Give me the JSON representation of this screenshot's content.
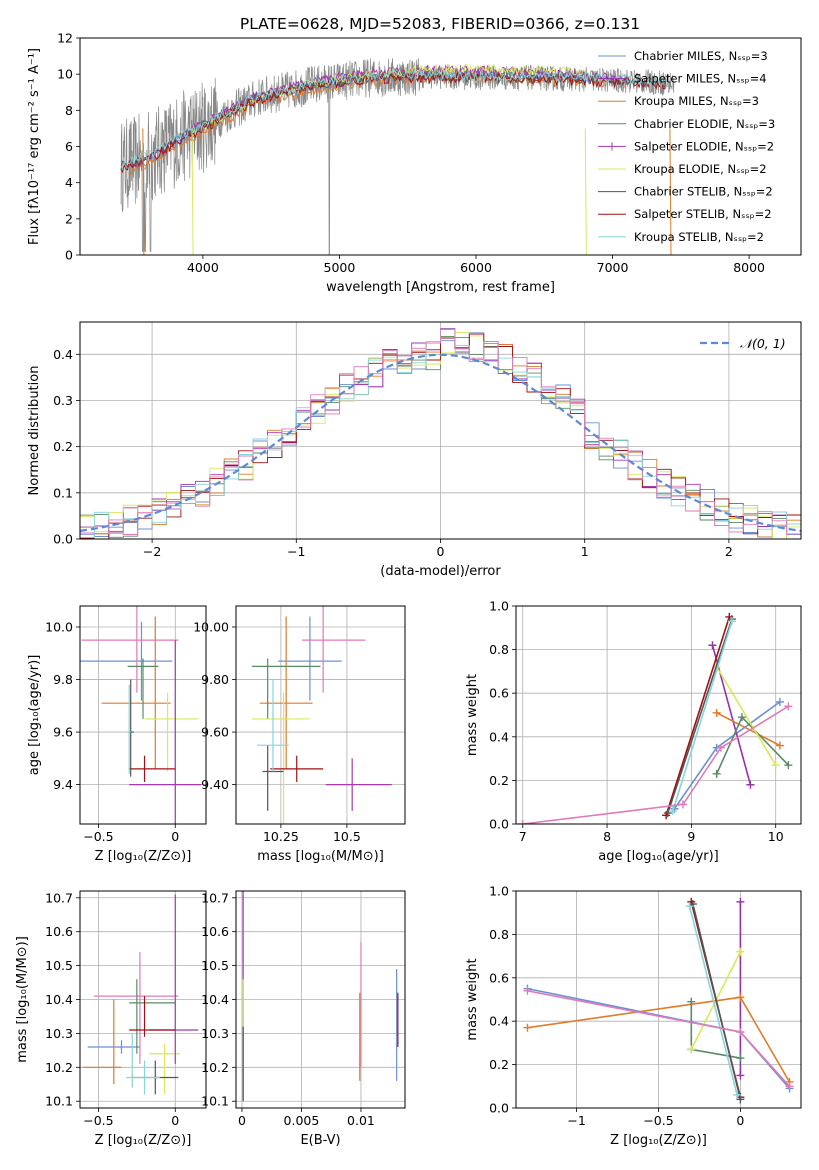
{
  "figure_title": "PLATE=0628, MJD=52083, FIBERID=0366, z=0.131",
  "colors": {
    "Chabrier MILES": "#6b8fd6",
    "Salpeter MILES": "#9a2fae",
    "Kroupa MILES": "#e07b28",
    "Chabrier ELODIE": "#5a8a66",
    "Salpeter ELODIE": "#a637ad",
    "Kroupa ELODIE": "#d8e858",
    "Chabrier STELIB": "#555555",
    "Salpeter STELIB": "#a01010",
    "Kroupa STELIB": "#86d4dc",
    "pink": "#e07ab8",
    "normal": "#5b8bd4"
  },
  "chart_data": [
    {
      "type": "line",
      "title": "PLATE=0628, MJD=52083, FIBERID=0366, z=0.131",
      "xlabel": "wavelength [Angstrom, rest frame]",
      "ylabel": "Flux [fλ10⁻¹⁷ erg cm⁻² s⁻¹ A⁻¹]",
      "xlim": [
        3100,
        8380
      ],
      "ylim": [
        0,
        12
      ],
      "xticks": [
        4000,
        5000,
        6000,
        7000,
        8000
      ],
      "yticks": [
        0,
        2,
        4,
        6,
        8,
        10,
        12
      ],
      "grid": false,
      "legend_position": "right",
      "series": [
        {
          "name": "Chabrier MILES, Nₛₛₚ=3",
          "key": "Chabrier MILES",
          "x": [
            3460,
            3600,
            3800,
            4000,
            4400,
            4800,
            5200,
            5600,
            6000,
            6400,
            6800,
            7100
          ],
          "y": [
            4.8,
            5.2,
            6.2,
            7.0,
            8.6,
            9.3,
            9.8,
            9.9,
            9.9,
            9.9,
            9.8,
            9.6
          ]
        },
        {
          "name": "Salpeter MILES, Nₛₛₚ=4",
          "key": "Salpeter MILES",
          "x": [
            3460,
            3600,
            3800,
            4000,
            4400,
            4800,
            5200,
            5600,
            6000,
            6400,
            6800,
            7100
          ],
          "y": [
            4.9,
            5.3,
            6.3,
            7.2,
            8.8,
            9.5,
            10.0,
            10.1,
            10.1,
            10.0,
            9.9,
            9.7
          ]
        },
        {
          "name": "Kroupa MILES, Nₛₛₚ=3",
          "key": "Kroupa MILES",
          "x": [
            3460,
            3600,
            3800,
            4000,
            4400,
            4800,
            5200,
            5600,
            6000,
            6400,
            6800,
            7100
          ],
          "y": [
            4.6,
            5.0,
            6.0,
            6.8,
            8.4,
            9.1,
            9.6,
            9.7,
            9.8,
            9.7,
            9.6,
            9.5
          ]
        },
        {
          "name": "Chabrier ELODIE, Nₛₛₚ=3",
          "key": "Chabrier ELODIE",
          "x": [
            3900,
            4400,
            4800,
            5200,
            5600,
            6000,
            6400,
            6800
          ],
          "y": [
            6.8,
            8.7,
            9.4,
            9.9,
            10.0,
            10.0,
            10.0,
            9.9
          ]
        },
        {
          "name": "Salpeter ELODIE, Nₛₛₚ=2",
          "key": "Salpeter ELODIE",
          "x": [
            3900,
            4400,
            4800,
            5200,
            5600,
            6000,
            6400,
            6800
          ],
          "y": [
            6.9,
            8.8,
            9.6,
            10.1,
            10.2,
            10.2,
            10.1,
            10.0
          ]
        },
        {
          "name": "Kroupa ELODIE, Nₛₛₚ=2",
          "key": "Kroupa ELODIE",
          "x": [
            3900,
            4400,
            4800,
            5200,
            5600,
            6000,
            6400,
            6800
          ],
          "y": [
            6.7,
            8.6,
            9.5,
            10.0,
            10.2,
            10.3,
            10.2,
            10.1
          ]
        },
        {
          "name": "Chabrier STELIB, Nₛₛₚ=2",
          "key": "Chabrier STELIB",
          "x": [
            3400,
            3600,
            3800,
            4000,
            4400,
            4800,
            5200,
            5600,
            6000,
            6400,
            6800,
            7200,
            7400
          ],
          "y": [
            4.9,
            5.4,
            6.3,
            7.1,
            8.7,
            9.4,
            9.8,
            9.9,
            9.8,
            9.8,
            9.7,
            9.6,
            9.5
          ]
        },
        {
          "name": "Salpeter STELIB, Nₛₛₚ=2",
          "key": "Salpeter STELIB",
          "x": [
            3400,
            3600,
            3800,
            4000,
            4400,
            4800,
            5200,
            5600,
            6000,
            6400,
            6800,
            7200,
            7400
          ],
          "y": [
            4.8,
            5.3,
            6.2,
            7.0,
            8.6,
            9.3,
            9.7,
            9.8,
            9.8,
            9.7,
            9.6,
            9.5,
            9.4
          ]
        },
        {
          "name": "Kroupa STELIB, Nₛₛₚ=2",
          "key": "Kroupa STELIB",
          "x": [
            3400,
            3600,
            3800,
            4000,
            4400,
            4800,
            5200,
            5600,
            6000,
            6400,
            6800,
            7200,
            7400
          ],
          "y": [
            5.0,
            5.5,
            6.4,
            7.2,
            8.8,
            9.5,
            9.9,
            10.0,
            9.9,
            9.9,
            9.8,
            9.7,
            9.6
          ]
        }
      ]
    },
    {
      "type": "line",
      "xlabel": "(data-model)/error",
      "ylabel": "Normed distribution",
      "xlim": [
        -2.5,
        2.5
      ],
      "ylim": [
        0,
        0.47
      ],
      "xticks": [
        -2,
        -1,
        0,
        1,
        2
      ],
      "yticks": [
        0.0,
        0.1,
        0.2,
        0.3,
        0.4
      ],
      "grid": true,
      "legend_position": "top-right",
      "normal_label": "𝒩(0, 1)"
    },
    {
      "type": "scatter",
      "xlabel": "Z [log₁₀(Z/Z⊙)]",
      "ylabel": "age  [log₁₀(age/yr)]",
      "xlim": [
        -0.62,
        0.2
      ],
      "ylim": [
        9.25,
        10.08
      ],
      "xticks": [
        -0.5,
        0.0
      ],
      "yticks": [
        9.4,
        9.6,
        9.8,
        10.0
      ],
      "grid": true
    },
    {
      "type": "scatter",
      "xlabel": "mass [log₁₀(M/M⊙)]",
      "xlim": [
        10.08,
        10.72
      ],
      "ylim": [
        9.25,
        10.08
      ],
      "xticks": [
        10.25,
        10.5
      ],
      "yticks": [
        9.4,
        9.6,
        9.8,
        10.0
      ],
      "grid": true
    },
    {
      "type": "line",
      "xlabel": "age  [log₁₀(age/yr)]",
      "ylabel": "mass weight",
      "xlim": [
        6.92,
        10.3
      ],
      "ylim": [
        0,
        1
      ],
      "xticks": [
        7,
        8,
        9,
        10
      ],
      "yticks": [
        0.0,
        0.2,
        0.4,
        0.6,
        0.8,
        1.0
      ],
      "grid": true
    },
    {
      "type": "scatter",
      "xlabel": "Z [log₁₀(Z/Z⊙)]",
      "ylabel": "mass [log₁₀(M/M⊙)]",
      "xlim": [
        -0.62,
        0.2
      ],
      "ylim": [
        10.08,
        10.72
      ],
      "xticks": [
        -0.5,
        0.0
      ],
      "yticks": [
        10.1,
        10.2,
        10.3,
        10.4,
        10.5,
        10.6,
        10.7
      ],
      "grid": true
    },
    {
      "type": "scatter",
      "xlabel": "E(B-V)",
      "xlim": [
        -0.0005,
        0.0137
      ],
      "ylim": [
        10.08,
        10.72
      ],
      "xticks": [
        0.0,
        0.005,
        0.01
      ],
      "yticks": [
        10.1,
        10.2,
        10.3,
        10.4,
        10.5,
        10.6,
        10.7
      ],
      "grid": true
    },
    {
      "type": "line",
      "xlabel": "Z [log₁₀(Z/Z⊙)]",
      "ylabel": "mass weight",
      "xlim": [
        -1.37,
        0.37
      ],
      "ylim": [
        0,
        1
      ],
      "xticks": [
        -1.0,
        -0.5,
        0.0
      ],
      "yticks": [
        0.0,
        0.2,
        0.4,
        0.6,
        0.8,
        1.0
      ],
      "grid": true
    }
  ]
}
